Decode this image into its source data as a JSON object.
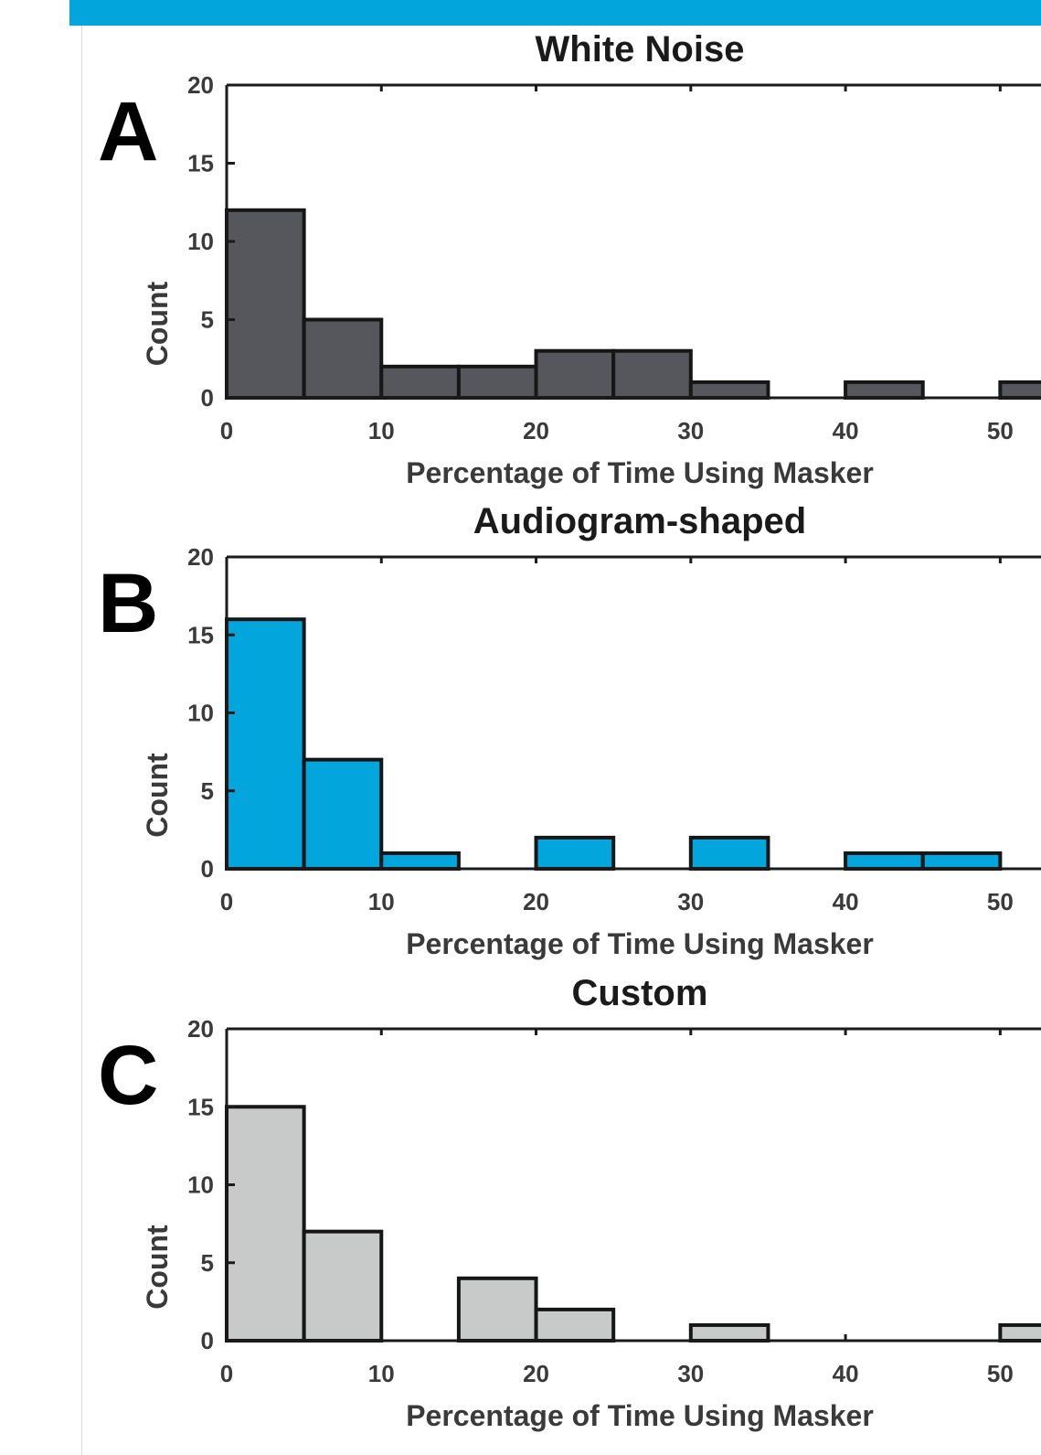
{
  "chart_data": [
    {
      "type": "bar",
      "panel_label": "A",
      "title": "White Noise",
      "xlabel": "Percentage of Time Using Masker",
      "ylabel": "Count",
      "xlim": [
        0,
        55
      ],
      "ylim": [
        0,
        20
      ],
      "xticks": [
        "0",
        "10",
        "20",
        "30",
        "40",
        "50"
      ],
      "yticks": [
        "0",
        "5",
        "10",
        "15",
        "20"
      ],
      "bin_width": 5,
      "bins": [
        0,
        5,
        10,
        15,
        20,
        25,
        30,
        35,
        40,
        45,
        50
      ],
      "values": [
        12,
        5,
        2,
        2,
        3,
        3,
        1,
        0,
        1,
        0,
        1
      ],
      "bar_color": "#55575c",
      "grid": false,
      "legend": "none"
    },
    {
      "type": "bar",
      "panel_label": "B",
      "title": "Audiogram-shaped",
      "xlabel": "Percentage of Time Using Masker",
      "ylabel": "Count",
      "xlim": [
        0,
        55
      ],
      "ylim": [
        0,
        20
      ],
      "xticks": [
        "0",
        "10",
        "20",
        "30",
        "40",
        "50"
      ],
      "yticks": [
        "0",
        "5",
        "10",
        "15",
        "20"
      ],
      "bin_width": 5,
      "bins": [
        0,
        5,
        10,
        15,
        20,
        25,
        30,
        35,
        40,
        45,
        50
      ],
      "values": [
        16,
        7,
        1,
        0,
        2,
        0,
        2,
        0,
        1,
        1,
        0
      ],
      "bar_color": "#02a6dc",
      "grid": false,
      "legend": "none"
    },
    {
      "type": "bar",
      "panel_label": "C",
      "title": "Custom",
      "xlabel": "Percentage of Time Using Masker",
      "ylabel": "Count",
      "xlim": [
        0,
        55
      ],
      "ylim": [
        0,
        20
      ],
      "xticks": [
        "0",
        "10",
        "20",
        "30",
        "40",
        "50"
      ],
      "yticks": [
        "0",
        "5",
        "10",
        "15",
        "20"
      ],
      "bin_width": 5,
      "bins": [
        0,
        5,
        10,
        15,
        20,
        25,
        30,
        35,
        40,
        45,
        50
      ],
      "values": [
        15,
        7,
        0,
        4,
        2,
        0,
        1,
        0,
        0,
        0,
        1
      ],
      "bar_color": "#c8c9c9",
      "grid": false,
      "legend": "none"
    }
  ],
  "colors": {
    "top_bar": "#02a6dc",
    "axis": "#1a1a1a",
    "bar_edge": "#161616"
  }
}
